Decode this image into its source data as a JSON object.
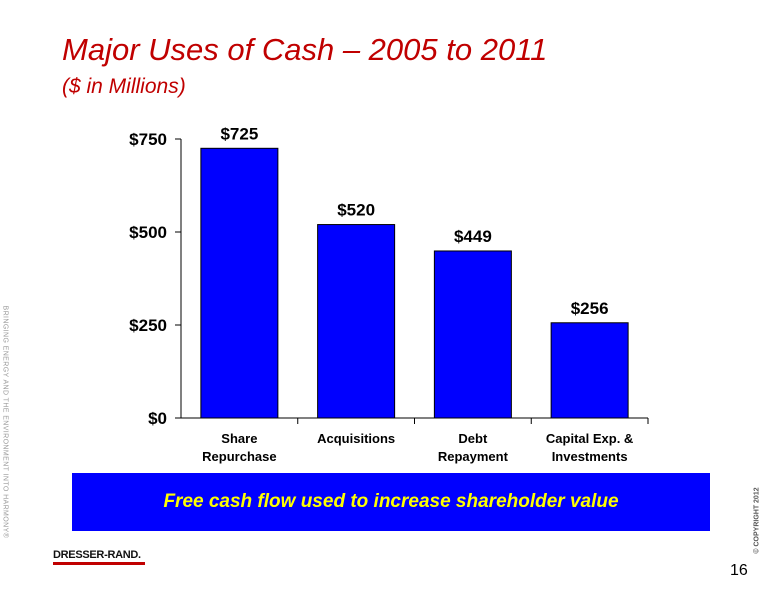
{
  "page": {
    "title": "Major Uses of Cash – 2005 to 2011",
    "subtitle": "($ in Millions)",
    "callout": "Free cash flow used to increase shareholder value",
    "side_text": "BRINGING ENERGY AND THE ENVIRONMENT INTO HARMONY®",
    "copyright": "© COPYRIGHT 2012",
    "logo": "DRESSER-RAND.",
    "page_number": "16"
  },
  "colors": {
    "bar": "#0000ff",
    "title": "#c00000",
    "callout_bg": "#0000ff",
    "callout_text": "#ffff00"
  },
  "chart_data": {
    "type": "bar",
    "categories": [
      [
        "Share",
        "Repurchase"
      ],
      [
        "Acquisitions"
      ],
      [
        "Debt",
        "Repayment"
      ],
      [
        "Capital Exp. &",
        "Investments"
      ]
    ],
    "values": [
      725,
      520,
      449,
      256
    ],
    "data_labels": [
      "$725",
      "$520",
      "$449",
      "$256"
    ],
    "yticks": [
      0,
      250,
      500,
      750
    ],
    "ytick_labels": [
      "$0",
      "$250",
      "$500",
      "$750"
    ],
    "ylim": [
      0,
      750
    ],
    "grid": false,
    "legend": "none"
  }
}
